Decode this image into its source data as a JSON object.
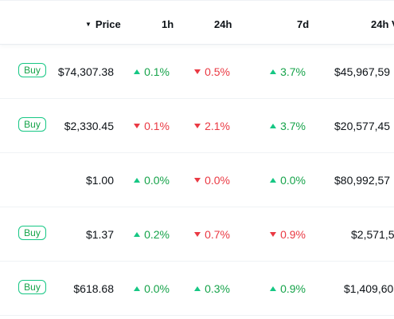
{
  "header": {
    "sort_arrow": "▼",
    "price": "Price",
    "h1": "1h",
    "h24": "24h",
    "d7": "7d",
    "volume": "24h V"
  },
  "buy_label": "Buy",
  "rows": [
    {
      "buy": true,
      "price": "$74,307.38",
      "h1": {
        "dir": "up",
        "value": "0.1%"
      },
      "h24": {
        "dir": "down",
        "value": "0.5%"
      },
      "d7": {
        "dir": "up",
        "value": "3.7%"
      },
      "volume": "$45,967,59"
    },
    {
      "buy": true,
      "price": "$2,330.45",
      "h1": {
        "dir": "down",
        "value": "0.1%"
      },
      "h24": {
        "dir": "down",
        "value": "2.1%"
      },
      "d7": {
        "dir": "up",
        "value": "3.7%"
      },
      "volume": "$20,577,45"
    },
    {
      "buy": false,
      "price": "$1.00",
      "h1": {
        "dir": "up",
        "value": "0.0%"
      },
      "h24": {
        "dir": "down",
        "value": "0.0%"
      },
      "d7": {
        "dir": "up",
        "value": "0.0%"
      },
      "volume": "$80,992,57"
    },
    {
      "buy": true,
      "price": "$1.37",
      "h1": {
        "dir": "up",
        "value": "0.2%"
      },
      "h24": {
        "dir": "down",
        "value": "0.7%"
      },
      "d7": {
        "dir": "down",
        "value": "0.9%"
      },
      "volume": "$2,571,5"
    },
    {
      "buy": true,
      "price": "$618.68",
      "h1": {
        "dir": "up",
        "value": "0.0%"
      },
      "h24": {
        "dir": "up",
        "value": "0.3%"
      },
      "d7": {
        "dir": "up",
        "value": "0.9%"
      },
      "volume": "$1,409,60"
    }
  ],
  "colors": {
    "up": "#16a34a",
    "down": "#ea3943",
    "buy_border": "#16c784"
  }
}
